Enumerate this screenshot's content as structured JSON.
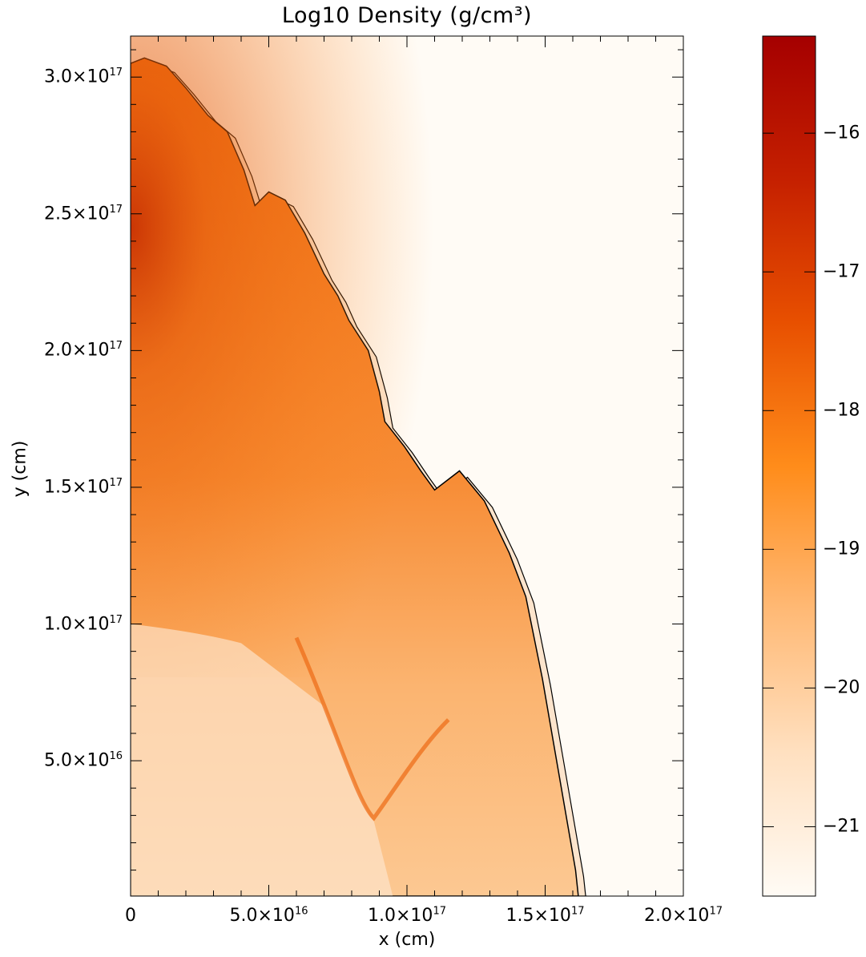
{
  "chart_data": {
    "type": "heatmap",
    "title": "Log10 Density (g/cm³)",
    "xlabel": "x (cm)",
    "ylabel": "y (cm)",
    "xlim": [
      0,
      2e+17
    ],
    "ylim": [
      500000000000000.0,
      3.15e+17
    ],
    "x_ticks": [
      {
        "value": 0,
        "label": "0"
      },
      {
        "value": 5e+16,
        "label": "5.0×10",
        "exp": "16"
      },
      {
        "value": 1e+17,
        "label": "1.0×10",
        "exp": "17"
      },
      {
        "value": 1.5e+17,
        "label": "1.5×10",
        "exp": "17"
      },
      {
        "value": 2e+17,
        "label": "2.0×10",
        "exp": "17"
      }
    ],
    "y_ticks": [
      {
        "value": 5e+16,
        "label": "5.0×10",
        "exp": "16"
      },
      {
        "value": 1e+17,
        "label": "1.0×10",
        "exp": "17"
      },
      {
        "value": 1.5e+17,
        "label": "1.5×10",
        "exp": "17"
      },
      {
        "value": 2e+17,
        "label": "2.0×10",
        "exp": "17"
      },
      {
        "value": 2.5e+17,
        "label": "2.5×10",
        "exp": "17"
      },
      {
        "value": 3e+17,
        "label": "3.0×10",
        "exp": "17"
      }
    ],
    "colorbar": {
      "range": [
        -21.5,
        -15.3
      ],
      "ticks": [
        {
          "value": -16,
          "label": "−16"
        },
        {
          "value": -17,
          "label": "−17"
        },
        {
          "value": -18,
          "label": "−18"
        },
        {
          "value": -19,
          "label": "−19"
        },
        {
          "value": -20,
          "label": "−20"
        },
        {
          "value": -21,
          "label": "−21"
        }
      ],
      "colors": [
        "#fffbf5",
        "#ffe0c0",
        "#ffb975",
        "#ff8c1a",
        "#e85000",
        "#c52000",
        "#a50000"
      ]
    },
    "shock_front": [
      [
        0,
        3.05e+17
      ],
      [
        5000000000000000.0,
        3.07e+17
      ],
      [
        1.3e+16,
        3.04e+17
      ],
      [
        2e+16,
        2.96e+17
      ],
      [
        2.8e+16,
        2.86e+17
      ],
      [
        3.5e+16,
        2.8e+17
      ],
      [
        4.1e+16,
        2.66e+17
      ],
      [
        4.5e+16,
        2.53e+17
      ],
      [
        5e+16,
        2.58e+17
      ],
      [
        5.6e+16,
        2.55e+17
      ],
      [
        6.3e+16,
        2.43e+17
      ],
      [
        7e+16,
        2.28e+17
      ],
      [
        7.5e+16,
        2.2e+17
      ],
      [
        7.9e+16,
        2.11e+17
      ],
      [
        8.6e+16,
        2e+17
      ],
      [
        9e+16,
        1.85e+17
      ],
      [
        9.2e+16,
        1.74e+17
      ],
      [
        9.9e+16,
        1.65e+17
      ],
      [
        1.05e+17,
        1.56e+17
      ],
      [
        1.1e+17,
        1.49e+17
      ],
      [
        1.19e+17,
        1.56e+17
      ],
      [
        1.28e+17,
        1.45e+17
      ],
      [
        1.37e+17,
        1.26e+17
      ],
      [
        1.43e+17,
        1.1e+17
      ],
      [
        1.49e+17,
        8e+16
      ],
      [
        1.55e+17,
        4.5e+16
      ],
      [
        1.61e+17,
        1e+16
      ],
      [
        1.62e+17,
        500000000000000.0
      ]
    ]
  }
}
